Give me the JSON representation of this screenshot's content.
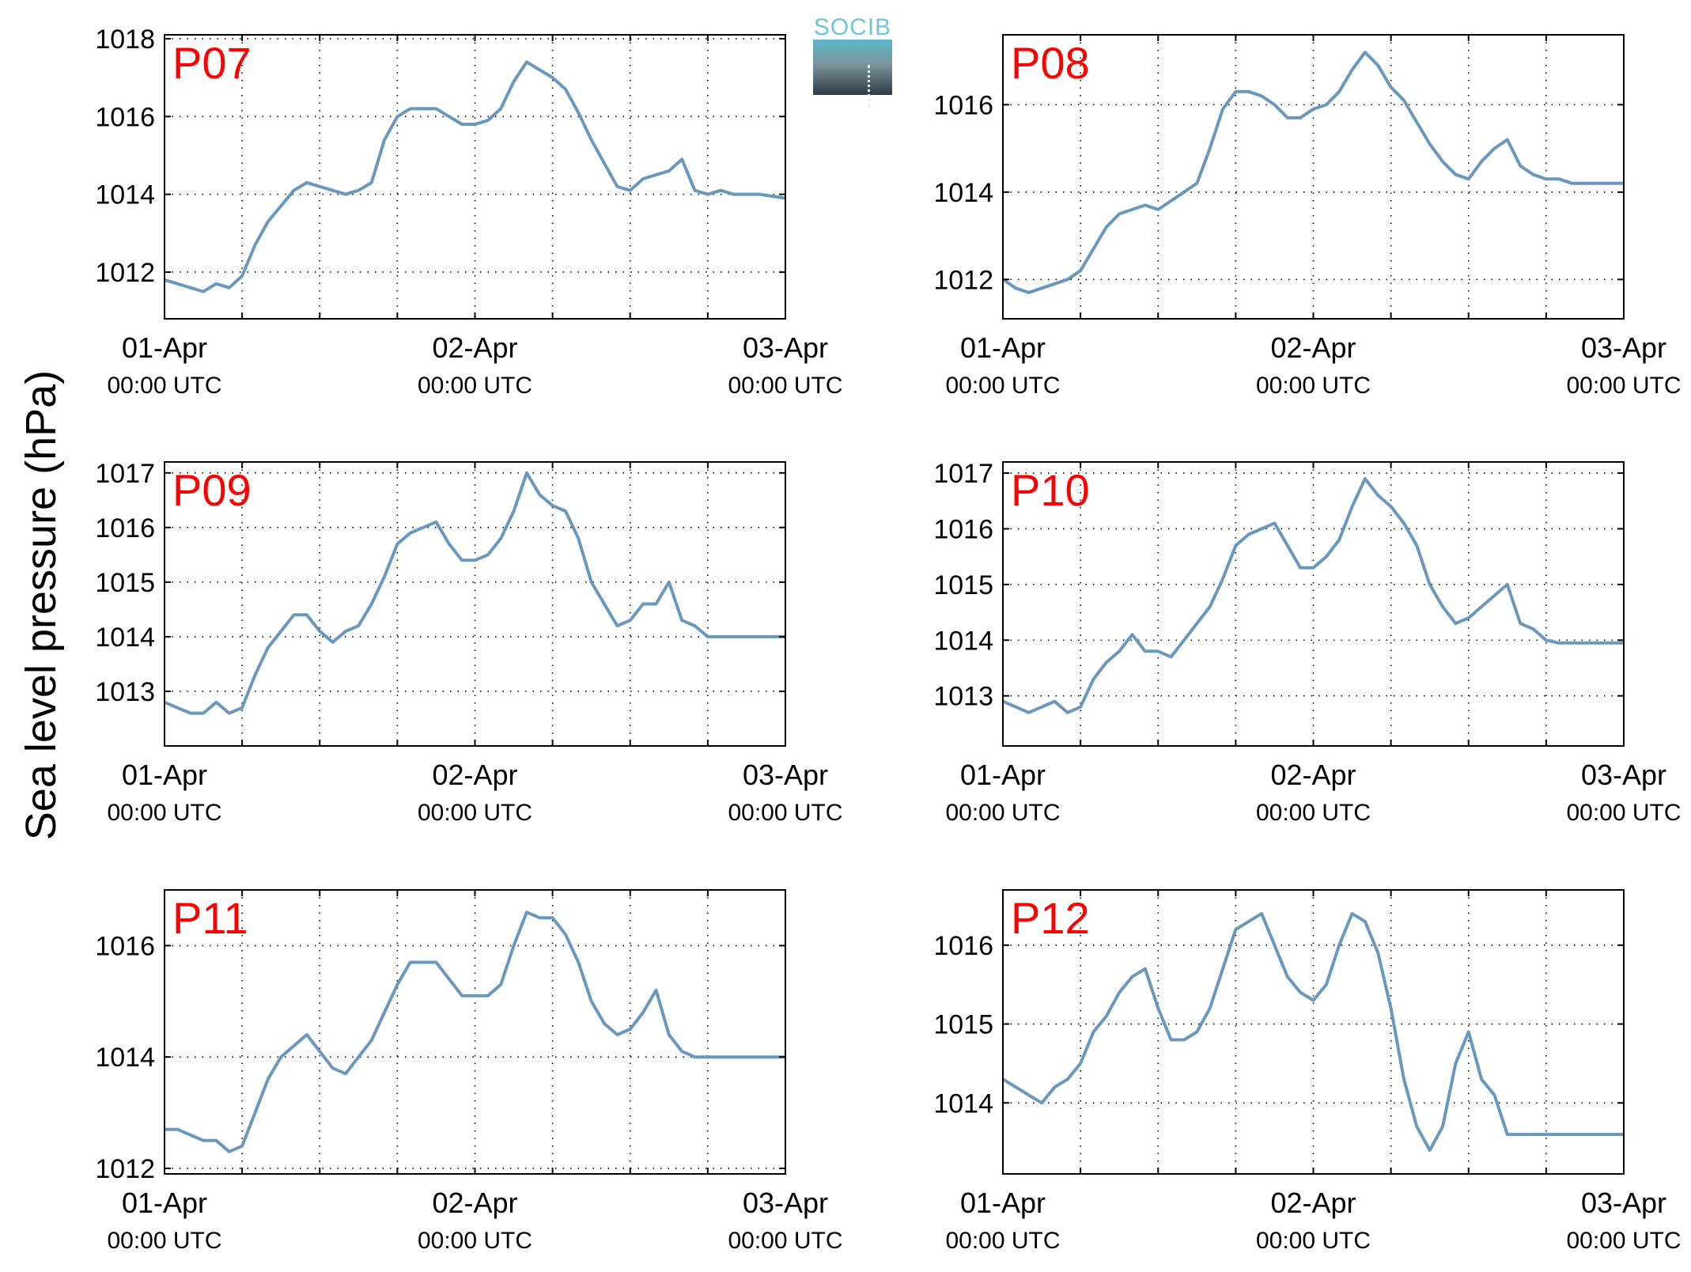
{
  "ylabel": "Sea level pressure (hPa)",
  "logo": {
    "text": "SOCIB"
  },
  "colors": {
    "line": "#6a97bd",
    "panel_label": "#ff0000"
  },
  "chart_data": [
    {
      "type": "line",
      "label": "P07",
      "ylim": [
        1010.8,
        1018.1
      ],
      "yticks": [
        1012,
        1014,
        1016,
        1018
      ],
      "xlim": [
        0,
        48
      ],
      "xticks": [
        0,
        6,
        12,
        18,
        24,
        30,
        36,
        42,
        48
      ],
      "xlabels": [
        {
          "x": 0,
          "date": "01-Apr",
          "time": "00:00 UTC"
        },
        {
          "x": 24,
          "date": "02-Apr",
          "time": "00:00 UTC"
        },
        {
          "x": 48,
          "date": "03-Apr",
          "time": "00:00 UTC"
        }
      ],
      "grid": true,
      "points": [
        [
          0,
          1011.8
        ],
        [
          1,
          1011.7
        ],
        [
          2,
          1011.6
        ],
        [
          3,
          1011.5
        ],
        [
          4,
          1011.7
        ],
        [
          5,
          1011.6
        ],
        [
          6,
          1011.9
        ],
        [
          7,
          1012.7
        ],
        [
          8,
          1013.3
        ],
        [
          9,
          1013.7
        ],
        [
          10,
          1014.1
        ],
        [
          11,
          1014.3
        ],
        [
          12,
          1014.2
        ],
        [
          13,
          1014.1
        ],
        [
          14,
          1014.0
        ],
        [
          15,
          1014.1
        ],
        [
          16,
          1014.3
        ],
        [
          17,
          1015.4
        ],
        [
          18,
          1016.0
        ],
        [
          19,
          1016.2
        ],
        [
          20,
          1016.2
        ],
        [
          21,
          1016.2
        ],
        [
          22,
          1016.0
        ],
        [
          23,
          1015.8
        ],
        [
          24,
          1015.8
        ],
        [
          25,
          1015.9
        ],
        [
          26,
          1016.2
        ],
        [
          27,
          1016.9
        ],
        [
          28,
          1017.4
        ],
        [
          29,
          1017.2
        ],
        [
          30,
          1017.0
        ],
        [
          31,
          1016.7
        ],
        [
          32,
          1016.1
        ],
        [
          33,
          1015.4
        ],
        [
          34,
          1014.8
        ],
        [
          35,
          1014.2
        ],
        [
          36,
          1014.1
        ],
        [
          37,
          1014.4
        ],
        [
          38,
          1014.5
        ],
        [
          39,
          1014.6
        ],
        [
          40,
          1014.9
        ],
        [
          41,
          1014.1
        ],
        [
          42,
          1014.0
        ],
        [
          43,
          1014.1
        ],
        [
          44,
          1014.0
        ],
        [
          45,
          1014.0
        ],
        [
          46,
          1014.0
        ],
        [
          47,
          1013.95
        ],
        [
          48,
          1013.9
        ]
      ]
    },
    {
      "type": "line",
      "label": "P08",
      "ylim": [
        1011.1,
        1017.6
      ],
      "yticks": [
        1012,
        1014,
        1016
      ],
      "xlim": [
        0,
        48
      ],
      "xticks": [
        0,
        6,
        12,
        18,
        24,
        30,
        36,
        42,
        48
      ],
      "xlabels": [
        {
          "x": 0,
          "date": "01-Apr",
          "time": "00:00 UTC"
        },
        {
          "x": 24,
          "date": "02-Apr",
          "time": "00:00 UTC"
        },
        {
          "x": 48,
          "date": "03-Apr",
          "time": "00:00 UTC"
        }
      ],
      "grid": true,
      "points": [
        [
          0,
          1012.0
        ],
        [
          1,
          1011.8
        ],
        [
          2,
          1011.7
        ],
        [
          3,
          1011.8
        ],
        [
          4,
          1011.9
        ],
        [
          5,
          1012.0
        ],
        [
          6,
          1012.2
        ],
        [
          7,
          1012.7
        ],
        [
          8,
          1013.2
        ],
        [
          9,
          1013.5
        ],
        [
          10,
          1013.6
        ],
        [
          11,
          1013.7
        ],
        [
          12,
          1013.6
        ],
        [
          13,
          1013.8
        ],
        [
          14,
          1014.0
        ],
        [
          15,
          1014.2
        ],
        [
          16,
          1015.0
        ],
        [
          17,
          1015.9
        ],
        [
          18,
          1016.3
        ],
        [
          19,
          1016.3
        ],
        [
          20,
          1016.2
        ],
        [
          21,
          1016.0
        ],
        [
          22,
          1015.7
        ],
        [
          23,
          1015.7
        ],
        [
          24,
          1015.9
        ],
        [
          25,
          1016.0
        ],
        [
          26,
          1016.3
        ],
        [
          27,
          1016.8
        ],
        [
          28,
          1017.2
        ],
        [
          29,
          1016.9
        ],
        [
          30,
          1016.4
        ],
        [
          31,
          1016.1
        ],
        [
          32,
          1015.6
        ],
        [
          33,
          1015.1
        ],
        [
          34,
          1014.7
        ],
        [
          35,
          1014.4
        ],
        [
          36,
          1014.3
        ],
        [
          37,
          1014.7
        ],
        [
          38,
          1015.0
        ],
        [
          39,
          1015.2
        ],
        [
          40,
          1014.6
        ],
        [
          41,
          1014.4
        ],
        [
          42,
          1014.3
        ],
        [
          43,
          1014.3
        ],
        [
          44,
          1014.2
        ],
        [
          45,
          1014.2
        ],
        [
          46,
          1014.2
        ],
        [
          47,
          1014.2
        ],
        [
          48,
          1014.2
        ]
      ]
    },
    {
      "type": "line",
      "label": "P09",
      "ylim": [
        1012.0,
        1017.2
      ],
      "yticks": [
        1013,
        1014,
        1015,
        1016,
        1017
      ],
      "xlim": [
        0,
        48
      ],
      "xticks": [
        0,
        6,
        12,
        18,
        24,
        30,
        36,
        42,
        48
      ],
      "xlabels": [
        {
          "x": 0,
          "date": "01-Apr",
          "time": "00:00 UTC"
        },
        {
          "x": 24,
          "date": "02-Apr",
          "time": "00:00 UTC"
        },
        {
          "x": 48,
          "date": "03-Apr",
          "time": "00:00 UTC"
        }
      ],
      "grid": true,
      "points": [
        [
          0,
          1012.8
        ],
        [
          1,
          1012.7
        ],
        [
          2,
          1012.6
        ],
        [
          3,
          1012.6
        ],
        [
          4,
          1012.8
        ],
        [
          5,
          1012.6
        ],
        [
          6,
          1012.7
        ],
        [
          7,
          1013.3
        ],
        [
          8,
          1013.8
        ],
        [
          9,
          1014.1
        ],
        [
          10,
          1014.4
        ],
        [
          11,
          1014.4
        ],
        [
          12,
          1014.1
        ],
        [
          13,
          1013.9
        ],
        [
          14,
          1014.1
        ],
        [
          15,
          1014.2
        ],
        [
          16,
          1014.6
        ],
        [
          17,
          1015.1
        ],
        [
          18,
          1015.7
        ],
        [
          19,
          1015.9
        ],
        [
          20,
          1016.0
        ],
        [
          21,
          1016.1
        ],
        [
          22,
          1015.7
        ],
        [
          23,
          1015.4
        ],
        [
          24,
          1015.4
        ],
        [
          25,
          1015.5
        ],
        [
          26,
          1015.8
        ],
        [
          27,
          1016.3
        ],
        [
          28,
          1017.0
        ],
        [
          29,
          1016.6
        ],
        [
          30,
          1016.4
        ],
        [
          31,
          1016.3
        ],
        [
          32,
          1015.8
        ],
        [
          33,
          1015.0
        ],
        [
          34,
          1014.6
        ],
        [
          35,
          1014.2
        ],
        [
          36,
          1014.3
        ],
        [
          37,
          1014.6
        ],
        [
          38,
          1014.6
        ],
        [
          39,
          1015.0
        ],
        [
          40,
          1014.3
        ],
        [
          41,
          1014.2
        ],
        [
          42,
          1014.0
        ],
        [
          43,
          1014.0
        ],
        [
          44,
          1014.0
        ],
        [
          45,
          1014.0
        ],
        [
          46,
          1014.0
        ],
        [
          47,
          1014.0
        ],
        [
          48,
          1014.0
        ]
      ]
    },
    {
      "type": "line",
      "label": "P10",
      "ylim": [
        1012.1,
        1017.2
      ],
      "yticks": [
        1013,
        1014,
        1015,
        1016,
        1017
      ],
      "xlim": [
        0,
        48
      ],
      "xticks": [
        0,
        6,
        12,
        18,
        24,
        30,
        36,
        42,
        48
      ],
      "xlabels": [
        {
          "x": 0,
          "date": "01-Apr",
          "time": "00:00 UTC"
        },
        {
          "x": 24,
          "date": "02-Apr",
          "time": "00:00 UTC"
        },
        {
          "x": 48,
          "date": "03-Apr",
          "time": "00:00 UTC"
        }
      ],
      "grid": true,
      "points": [
        [
          0,
          1012.9
        ],
        [
          1,
          1012.8
        ],
        [
          2,
          1012.7
        ],
        [
          3,
          1012.8
        ],
        [
          4,
          1012.9
        ],
        [
          5,
          1012.7
        ],
        [
          6,
          1012.8
        ],
        [
          7,
          1013.3
        ],
        [
          8,
          1013.6
        ],
        [
          9,
          1013.8
        ],
        [
          10,
          1014.1
        ],
        [
          11,
          1013.8
        ],
        [
          12,
          1013.8
        ],
        [
          13,
          1013.7
        ],
        [
          14,
          1014.0
        ],
        [
          15,
          1014.3
        ],
        [
          16,
          1014.6
        ],
        [
          17,
          1015.1
        ],
        [
          18,
          1015.7
        ],
        [
          19,
          1015.9
        ],
        [
          20,
          1016.0
        ],
        [
          21,
          1016.1
        ],
        [
          22,
          1015.7
        ],
        [
          23,
          1015.3
        ],
        [
          24,
          1015.3
        ],
        [
          25,
          1015.5
        ],
        [
          26,
          1015.8
        ],
        [
          27,
          1016.4
        ],
        [
          28,
          1016.9
        ],
        [
          29,
          1016.6
        ],
        [
          30,
          1016.4
        ],
        [
          31,
          1016.1
        ],
        [
          32,
          1015.7
        ],
        [
          33,
          1015.0
        ],
        [
          34,
          1014.6
        ],
        [
          35,
          1014.3
        ],
        [
          36,
          1014.4
        ],
        [
          37,
          1014.6
        ],
        [
          38,
          1014.8
        ],
        [
          39,
          1015.0
        ],
        [
          40,
          1014.3
        ],
        [
          41,
          1014.2
        ],
        [
          42,
          1014.0
        ],
        [
          43,
          1013.95
        ],
        [
          44,
          1013.95
        ],
        [
          45,
          1013.95
        ],
        [
          46,
          1013.95
        ],
        [
          47,
          1013.95
        ],
        [
          48,
          1013.95
        ]
      ]
    },
    {
      "type": "line",
      "label": "P11",
      "ylim": [
        1011.9,
        1017.0
      ],
      "yticks": [
        1012,
        1014,
        1016
      ],
      "xlim": [
        0,
        48
      ],
      "xticks": [
        0,
        6,
        12,
        18,
        24,
        30,
        36,
        42,
        48
      ],
      "xlabels": [
        {
          "x": 0,
          "date": "01-Apr",
          "time": "00:00 UTC"
        },
        {
          "x": 24,
          "date": "02-Apr",
          "time": "00:00 UTC"
        },
        {
          "x": 48,
          "date": "03-Apr",
          "time": "00:00 UTC"
        }
      ],
      "grid": true,
      "points": [
        [
          0,
          1012.7
        ],
        [
          1,
          1012.7
        ],
        [
          2,
          1012.6
        ],
        [
          3,
          1012.5
        ],
        [
          4,
          1012.5
        ],
        [
          5,
          1012.3
        ],
        [
          6,
          1012.4
        ],
        [
          7,
          1013.0
        ],
        [
          8,
          1013.6
        ],
        [
          9,
          1014.0
        ],
        [
          10,
          1014.2
        ],
        [
          11,
          1014.4
        ],
        [
          12,
          1014.1
        ],
        [
          13,
          1013.8
        ],
        [
          14,
          1013.7
        ],
        [
          15,
          1014.0
        ],
        [
          16,
          1014.3
        ],
        [
          17,
          1014.8
        ],
        [
          18,
          1015.3
        ],
        [
          19,
          1015.7
        ],
        [
          20,
          1015.7
        ],
        [
          21,
          1015.7
        ],
        [
          22,
          1015.4
        ],
        [
          23,
          1015.1
        ],
        [
          24,
          1015.1
        ],
        [
          25,
          1015.1
        ],
        [
          26,
          1015.3
        ],
        [
          27,
          1016.0
        ],
        [
          28,
          1016.6
        ],
        [
          29,
          1016.5
        ],
        [
          30,
          1016.5
        ],
        [
          31,
          1016.2
        ],
        [
          32,
          1015.7
        ],
        [
          33,
          1015.0
        ],
        [
          34,
          1014.6
        ],
        [
          35,
          1014.4
        ],
        [
          36,
          1014.5
        ],
        [
          37,
          1014.8
        ],
        [
          38,
          1015.2
        ],
        [
          39,
          1014.4
        ],
        [
          40,
          1014.1
        ],
        [
          41,
          1014.0
        ],
        [
          42,
          1014.0
        ],
        [
          43,
          1014.0
        ],
        [
          44,
          1014.0
        ],
        [
          45,
          1014.0
        ],
        [
          46,
          1014.0
        ],
        [
          47,
          1014.0
        ],
        [
          48,
          1014.0
        ]
      ]
    },
    {
      "type": "line",
      "label": "P12",
      "ylim": [
        1013.1,
        1016.7
      ],
      "yticks": [
        1014,
        1015,
        1016
      ],
      "xlim": [
        0,
        48
      ],
      "xticks": [
        0,
        6,
        12,
        18,
        24,
        30,
        36,
        42,
        48
      ],
      "xlabels": [
        {
          "x": 0,
          "date": "01-Apr",
          "time": "00:00 UTC"
        },
        {
          "x": 24,
          "date": "02-Apr",
          "time": "00:00 UTC"
        },
        {
          "x": 48,
          "date": "03-Apr",
          "time": "00:00 UTC"
        }
      ],
      "grid": true,
      "points": [
        [
          0,
          1014.3
        ],
        [
          1,
          1014.2
        ],
        [
          2,
          1014.1
        ],
        [
          3,
          1014.0
        ],
        [
          4,
          1014.2
        ],
        [
          5,
          1014.3
        ],
        [
          6,
          1014.5
        ],
        [
          7,
          1014.9
        ],
        [
          8,
          1015.1
        ],
        [
          9,
          1015.4
        ],
        [
          10,
          1015.6
        ],
        [
          11,
          1015.7
        ],
        [
          12,
          1015.2
        ],
        [
          13,
          1014.8
        ],
        [
          14,
          1014.8
        ],
        [
          15,
          1014.9
        ],
        [
          16,
          1015.2
        ],
        [
          17,
          1015.7
        ],
        [
          18,
          1016.2
        ],
        [
          19,
          1016.3
        ],
        [
          20,
          1016.4
        ],
        [
          21,
          1016.0
        ],
        [
          22,
          1015.6
        ],
        [
          23,
          1015.4
        ],
        [
          24,
          1015.3
        ],
        [
          25,
          1015.5
        ],
        [
          26,
          1016.0
        ],
        [
          27,
          1016.4
        ],
        [
          28,
          1016.3
        ],
        [
          29,
          1015.9
        ],
        [
          30,
          1015.2
        ],
        [
          31,
          1014.3
        ],
        [
          32,
          1013.7
        ],
        [
          33,
          1013.4
        ],
        [
          34,
          1013.7
        ],
        [
          35,
          1014.5
        ],
        [
          36,
          1014.9
        ],
        [
          37,
          1014.3
        ],
        [
          38,
          1014.1
        ],
        [
          39,
          1013.6
        ],
        [
          40,
          1013.6
        ],
        [
          41,
          1013.6
        ],
        [
          42,
          1013.6
        ],
        [
          43,
          1013.6
        ],
        [
          44,
          1013.6
        ],
        [
          45,
          1013.6
        ],
        [
          46,
          1013.6
        ],
        [
          47,
          1013.6
        ],
        [
          48,
          1013.6
        ]
      ]
    }
  ]
}
